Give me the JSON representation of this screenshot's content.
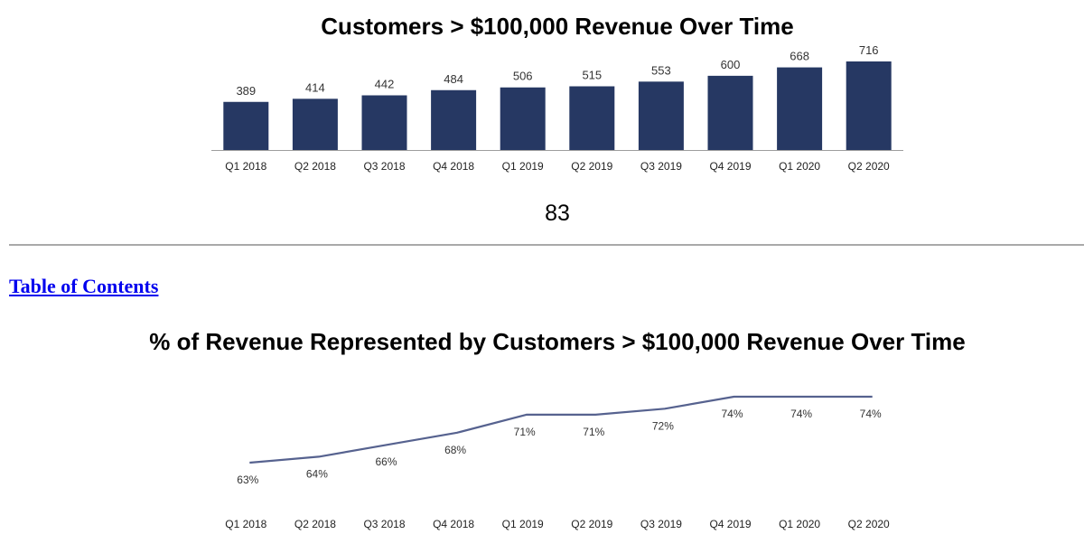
{
  "toc_link": "Table of Contents",
  "page_number": "83",
  "colors": {
    "bar": "#263863",
    "line": "#56628f",
    "axis": "#9e9e9e",
    "link": "#0000ee"
  },
  "chart_data": [
    {
      "type": "bar",
      "title": "Customers > $100,000 Revenue Over Time",
      "categories": [
        "Q1 2018",
        "Q2 2018",
        "Q3 2018",
        "Q4 2018",
        "Q1 2019",
        "Q2 2019",
        "Q3 2019",
        "Q4 2019",
        "Q1 2020",
        "Q2 2020"
      ],
      "values": [
        389,
        414,
        442,
        484,
        506,
        515,
        553,
        600,
        668,
        716
      ],
      "data_labels": [
        "389",
        "414",
        "442",
        "484",
        "506",
        "515",
        "553",
        "600",
        "668",
        "716"
      ],
      "xlabel": "",
      "ylabel": "",
      "ylim": [
        0,
        716
      ]
    },
    {
      "type": "line",
      "title": "% of Revenue Represented by Customers > $100,000 Revenue Over Time",
      "categories": [
        "Q1 2018",
        "Q2 2018",
        "Q3 2018",
        "Q4 2018",
        "Q1 2019",
        "Q2 2019",
        "Q3 2019",
        "Q4 2019",
        "Q1 2020",
        "Q2 2020"
      ],
      "values": [
        63,
        64,
        66,
        68,
        71,
        71,
        72,
        74,
        74,
        74
      ],
      "data_labels": [
        "63%",
        "64%",
        "66%",
        "68%",
        "71%",
        "71%",
        "72%",
        "74%",
        "74%",
        "74%"
      ],
      "xlabel": "",
      "ylabel": "",
      "ylim": [
        63,
        74
      ]
    }
  ]
}
